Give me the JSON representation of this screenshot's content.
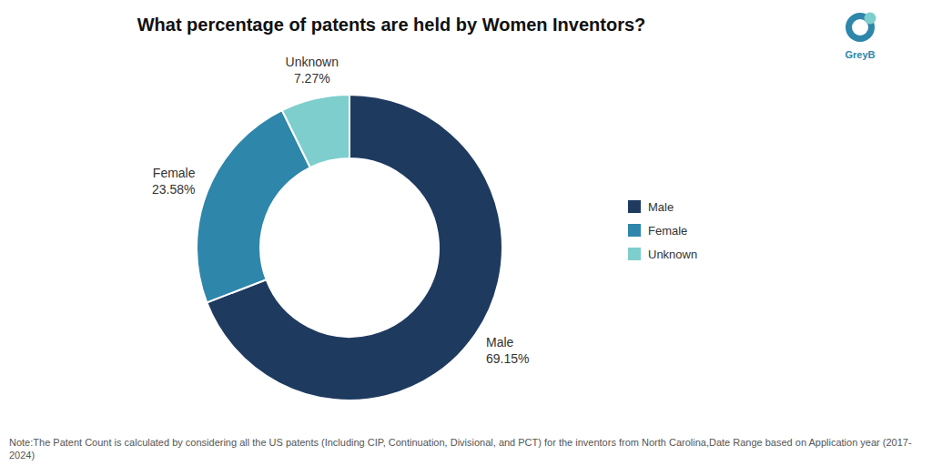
{
  "chart_data": {
    "type": "donut",
    "title": "What percentage of patents are held by Women Inventors?",
    "categories": [
      "Male",
      "Female",
      "Unknown"
    ],
    "values": [
      69.15,
      23.58,
      7.27
    ],
    "value_labels": [
      "69.15%",
      "23.58%",
      "7.27%"
    ],
    "colors": [
      "#1e3a5f",
      "#2e86ab",
      "#7ecece"
    ],
    "data_labels": true,
    "legend": "right",
    "annotations": [
      "Note:The Patent Count is calculated by considering all the US patents (Including CIP, Continuation, Divisional, and PCT) for the inventors from North Carolina,Date Range based on Application year (2017- 2024)",
      "GreyB"
    ]
  }
}
